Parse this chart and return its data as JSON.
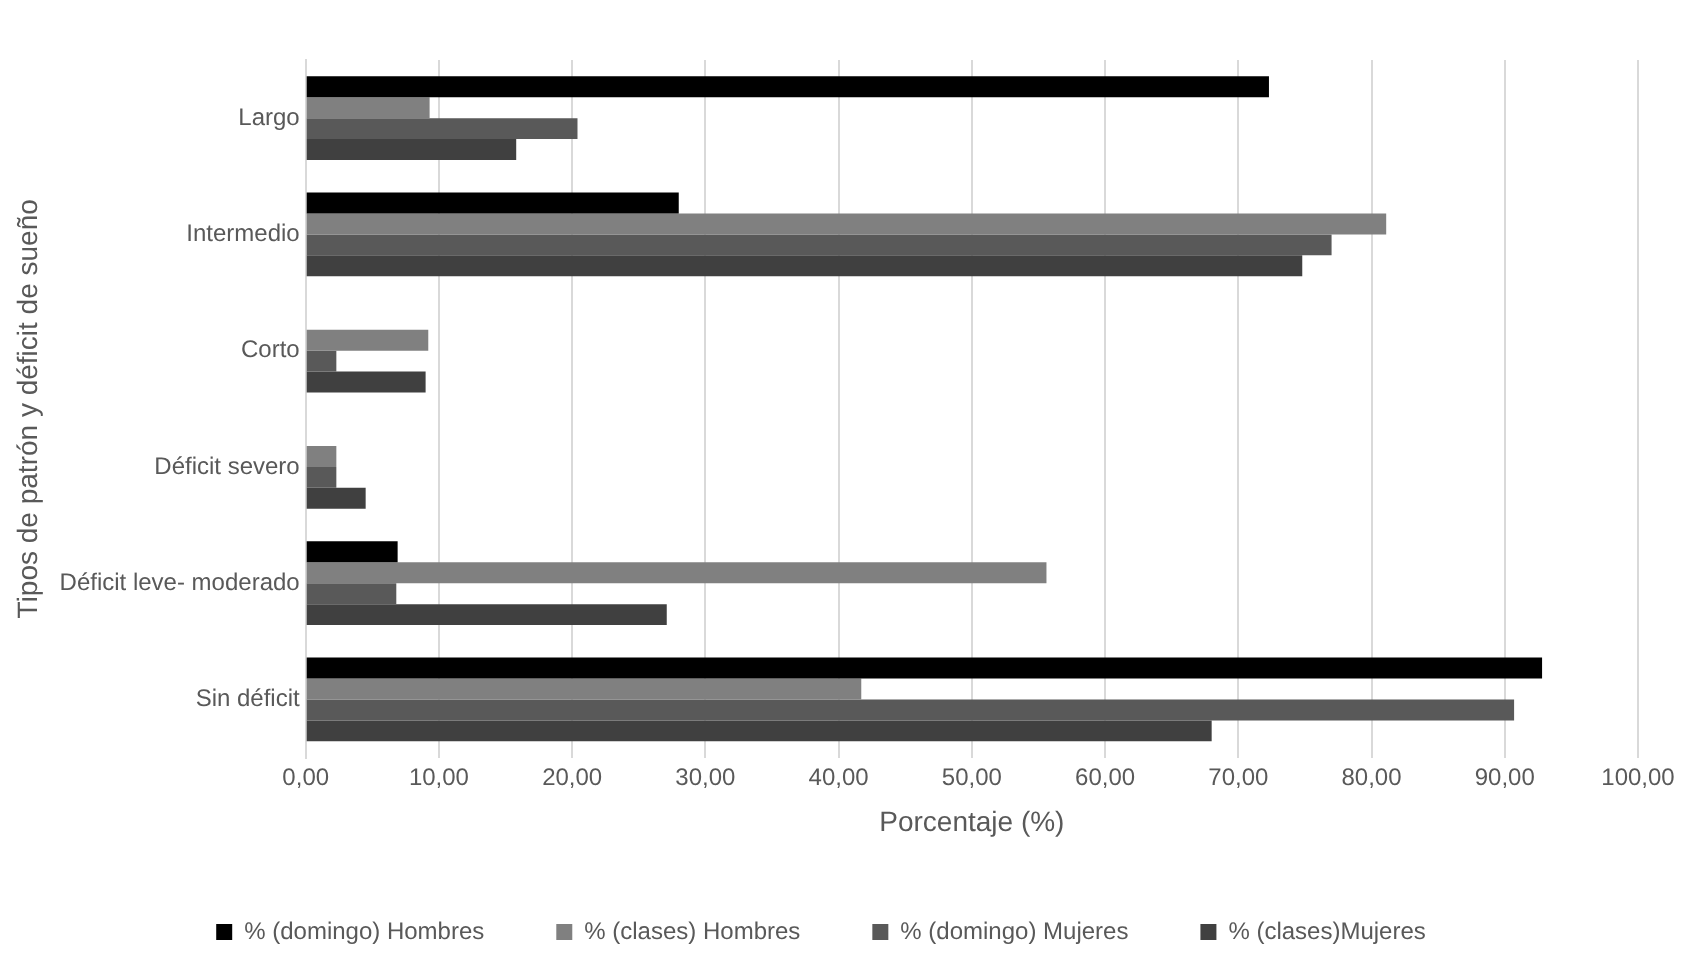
{
  "chart_data": {
    "type": "bar",
    "orientation": "horizontal",
    "xlabel": "Porcentaje (%)",
    "ylabel": "Tipos de patrón y déficit de sueño",
    "categories": [
      "Largo",
      "Intermedio",
      "Corto",
      "Déficit severo",
      "Déficit leve- moderado",
      "Sin déficit"
    ],
    "series": [
      {
        "name": "% (domingo) Hombres",
        "color": "#000000",
        "values": [
          72.3,
          28.0,
          null,
          null,
          6.9,
          92.8
        ]
      },
      {
        "name": "% (clases) Hombres",
        "color": "#808080",
        "values": [
          9.3,
          81.1,
          9.2,
          2.3,
          55.6,
          41.7
        ]
      },
      {
        "name": "% (domingo) Mujeres",
        "color": "#595959",
        "values": [
          20.4,
          77.0,
          2.3,
          2.3,
          6.8,
          90.7
        ]
      },
      {
        "name": "% (clases)Mujeres",
        "color": "#404040",
        "values": [
          15.8,
          74.8,
          9.0,
          4.5,
          27.1,
          68.0
        ]
      }
    ],
    "xlim": [
      0,
      100
    ],
    "xticks": [
      {
        "value": 0,
        "label": "0,00"
      },
      {
        "value": 10,
        "label": "10,00"
      },
      {
        "value": 20,
        "label": "20,00"
      },
      {
        "value": 30,
        "label": "30,00"
      },
      {
        "value": 40,
        "label": "40,00"
      },
      {
        "value": 50,
        "label": "50,00"
      },
      {
        "value": 60,
        "label": "60,00"
      },
      {
        "value": 70,
        "label": "70,00"
      },
      {
        "value": 80,
        "label": "80,00"
      },
      {
        "value": 90,
        "label": "90,00"
      },
      {
        "value": 100,
        "label": "100,00"
      }
    ],
    "grid": "x",
    "legend": "bottom"
  }
}
